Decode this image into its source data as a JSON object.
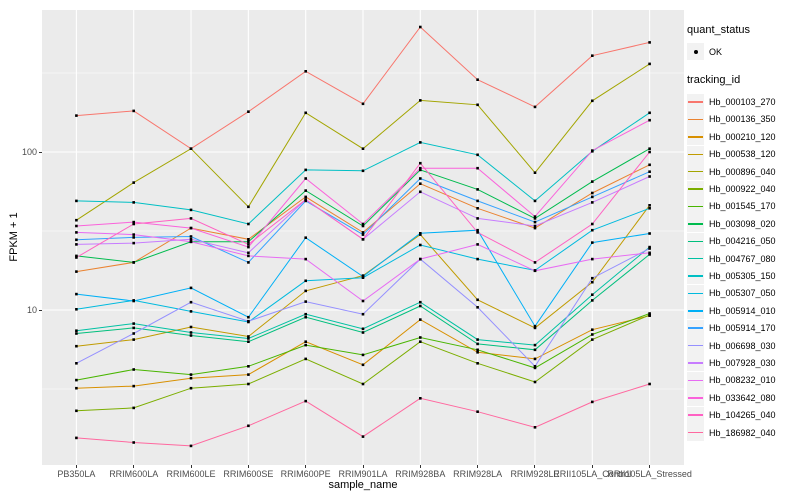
{
  "chart_data": {
    "type": "line",
    "title": "",
    "xlabel": "sample_name",
    "ylabel": "FPKM + 1",
    "y_scale": "log10",
    "panel_bg": "#EBEBEB",
    "gridline_color": "#FFFFFF",
    "point_color": "#000000",
    "axis_text_color": "#4D4D4D",
    "y_ticks": [
      {
        "value": 100,
        "label": "100"
      },
      {
        "value": 10,
        "label": "10"
      }
    ],
    "y_minor_breaks": [
      3.162,
      31.62,
      316.2
    ],
    "ylim": [
      1.05,
      790
    ],
    "categories": [
      "PB350LA",
      "RRIM600LA",
      "RRIM600LE",
      "RRIM600SE",
      "RRIM600PE",
      "RRIM901LA",
      "RRIM928BA",
      "RRIM928LA",
      "RRIM928LE",
      "RRII105LA_Control",
      "RRII105LA_Stressed"
    ],
    "legend_quant": {
      "title": "quant_status",
      "items": [
        {
          "label": "OK",
          "marker": "point"
        }
      ]
    },
    "legend_tracking": {
      "title": "tracking_id"
    },
    "series": [
      {
        "name": "Hb_000103_270",
        "color": "#F8766D",
        "values": [
          170,
          182,
          105,
          180,
          324,
          202,
          618,
          287,
          193,
          407,
          494
        ]
      },
      {
        "name": "Hb_000136_350",
        "color": "#EA8331",
        "values": [
          17.5,
          20,
          33,
          28,
          52,
          31,
          63,
          44,
          33,
          55,
          83
        ]
      },
      {
        "name": "Hb_000210_120",
        "color": "#D89000",
        "values": [
          3.2,
          3.3,
          3.7,
          3.9,
          6.3,
          4.5,
          8.7,
          5.4,
          4.9,
          7.5,
          9.2
        ]
      },
      {
        "name": "Hb_000538_120",
        "color": "#C09B00",
        "values": [
          5.9,
          6.5,
          7.8,
          6.8,
          13.2,
          16.5,
          30,
          11.6,
          7.7,
          15,
          46
        ]
      },
      {
        "name": "Hb_000896_040",
        "color": "#A3A500",
        "values": [
          37,
          64,
          105,
          45,
          177,
          105,
          212,
          199,
          74,
          211,
          361
        ]
      },
      {
        "name": "Hb_000922_040",
        "color": "#7CAE00",
        "values": [
          2.3,
          2.4,
          3.2,
          3.4,
          4.9,
          3.4,
          6.3,
          4.6,
          3.5,
          6.5,
          9.3
        ]
      },
      {
        "name": "Hb_001545_170",
        "color": "#49B500",
        "values": [
          3.6,
          4.2,
          3.9,
          4.4,
          6.0,
          5.2,
          6.7,
          5.6,
          4.3,
          7.0,
          9.5
        ]
      },
      {
        "name": "Hb_003098_020",
        "color": "#00BB4E",
        "values": [
          22,
          20,
          27,
          27,
          57,
          34,
          77,
          58,
          38,
          65,
          105
        ]
      },
      {
        "name": "Hb_004216_050",
        "color": "#00BF7D",
        "values": [
          7.1,
          7.7,
          6.9,
          6.3,
          9.0,
          7.2,
          10.6,
          6.1,
          5.6,
          11.5,
          22.5
        ]
      },
      {
        "name": "Hb_004767_080",
        "color": "#00C1A3",
        "values": [
          7.4,
          8.2,
          7.2,
          6.6,
          9.4,
          7.6,
          11.2,
          6.5,
          6.0,
          12.5,
          25
        ]
      },
      {
        "name": "Hb_005305_150",
        "color": "#00BFC4",
        "values": [
          49,
          48,
          43,
          35,
          77,
          76,
          115,
          96,
          49,
          101,
          177
        ]
      },
      {
        "name": "Hb_005307_050",
        "color": "#00BADE",
        "values": [
          10.1,
          11.5,
          9.8,
          8.4,
          15.3,
          16,
          25.8,
          21,
          17.8,
          32,
          44
        ]
      },
      {
        "name": "Hb_005914_010",
        "color": "#00B0F6",
        "values": [
          12.6,
          11.4,
          13.8,
          9,
          28.7,
          16.3,
          30.6,
          32,
          7.9,
          26.7,
          30.5
        ]
      },
      {
        "name": "Hb_005914_170",
        "color": "#35A2FF",
        "values": [
          27.8,
          28.8,
          29.2,
          20,
          49,
          30,
          68,
          49,
          36,
          52,
          75
        ]
      },
      {
        "name": "Hb_006698_030",
        "color": "#9590FF",
        "values": [
          4.6,
          7.1,
          11.2,
          8.5,
          11.3,
          9.4,
          21,
          10.4,
          4.4,
          15.9,
          24.5
        ]
      },
      {
        "name": "Hb_007928_030",
        "color": "#C77CFF",
        "values": [
          26,
          26.5,
          28,
          23,
          50,
          28,
          56,
          38,
          34,
          48,
          70
        ]
      },
      {
        "name": "Hb_008232_010",
        "color": "#E76BF3",
        "values": [
          31,
          30,
          27,
          22,
          21,
          11.4,
          21,
          26,
          17.7,
          21,
          23
        ]
      },
      {
        "name": "Hb_033642_080",
        "color": "#FA62DB",
        "values": [
          34,
          36,
          33,
          25,
          68,
          35,
          79,
          79,
          39,
          102,
          159
        ]
      },
      {
        "name": "Hb_104265_040",
        "color": "#FF61C3",
        "values": [
          21.5,
          35,
          38,
          26,
          50,
          28,
          85,
          31,
          20,
          35,
          100
        ]
      },
      {
        "name": "Hb_186982_040",
        "color": "#FF689F",
        "values": [
          1.55,
          1.45,
          1.38,
          1.85,
          2.65,
          1.58,
          2.76,
          2.27,
          1.81,
          2.62,
          3.4
        ]
      }
    ]
  }
}
